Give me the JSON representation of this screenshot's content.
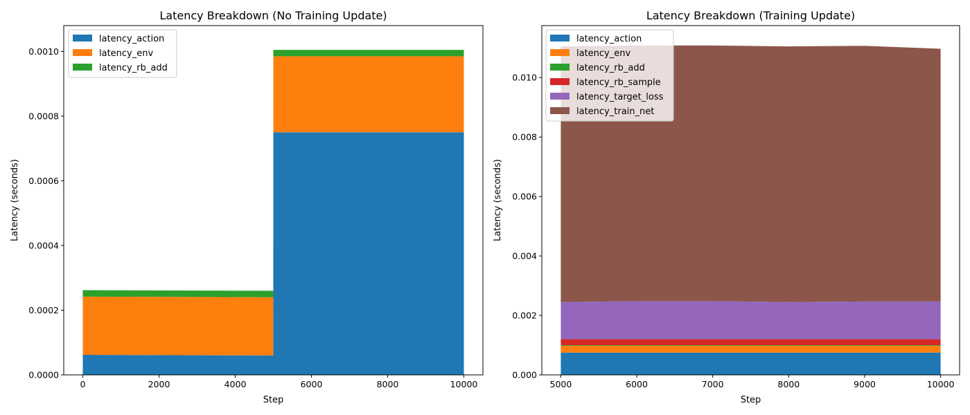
{
  "chart_data": [
    {
      "type": "area",
      "stacked": true,
      "title": "Latency Breakdown (No Training Update)",
      "xlabel": "Step",
      "ylabel": "Latency (seconds)",
      "xlim": [
        -500,
        10500
      ],
      "ylim": [
        0,
        0.00108
      ],
      "xticks": [
        0,
        2000,
        4000,
        6000,
        8000,
        10000
      ],
      "xtick_labels": [
        "0",
        "2000",
        "4000",
        "6000",
        "8000",
        "10000"
      ],
      "yticks": [
        0,
        0.0002,
        0.0004,
        0.0006,
        0.0008,
        0.001
      ],
      "ytick_labels": [
        "0.0000",
        "0.0002",
        "0.0004",
        "0.0006",
        "0.0008",
        "0.0010"
      ],
      "grid": false,
      "legend_position": "upper-left",
      "x": [
        0,
        4999,
        5000,
        10000
      ],
      "series": [
        {
          "name": "latency_action",
          "color": "#1f77b4",
          "values": [
            6.2e-05,
            6e-05,
            0.00075,
            0.00075
          ]
        },
        {
          "name": "latency_env",
          "color": "#ff7f0e",
          "values": [
            0.00018,
            0.00018,
            0.000235,
            0.000235
          ]
        },
        {
          "name": "latency_rb_add",
          "color": "#2ca02c",
          "values": [
            2e-05,
            2e-05,
            2e-05,
            2e-05
          ]
        }
      ]
    },
    {
      "type": "area",
      "stacked": true,
      "title": "Latency Breakdown (Training Update)",
      "xlabel": "Step",
      "ylabel": "Latency (seconds)",
      "xlim": [
        4750,
        10250
      ],
      "ylim": [
        0,
        0.01175
      ],
      "xticks": [
        5000,
        6000,
        7000,
        8000,
        9000,
        10000
      ],
      "xtick_labels": [
        "5000",
        "6000",
        "7000",
        "8000",
        "9000",
        "10000"
      ],
      "yticks": [
        0,
        0.002,
        0.004,
        0.006,
        0.008,
        0.01
      ],
      "ytick_labels": [
        "0.000",
        "0.002",
        "0.004",
        "0.006",
        "0.008",
        "0.010"
      ],
      "grid": false,
      "legend_position": "upper-left",
      "x": [
        5000,
        6000,
        7000,
        8000,
        9000,
        10000
      ],
      "series": [
        {
          "name": "latency_action",
          "color": "#1f77b4",
          "values": [
            0.00075,
            0.00075,
            0.00075,
            0.00075,
            0.00075,
            0.00075
          ]
        },
        {
          "name": "latency_env",
          "color": "#ff7f0e",
          "values": [
            0.00023,
            0.00023,
            0.00023,
            0.00023,
            0.00023,
            0.00023
          ]
        },
        {
          "name": "latency_rb_add",
          "color": "#2ca02c",
          "values": [
            2e-05,
            2e-05,
            2e-05,
            2e-05,
            2e-05,
            2e-05
          ]
        },
        {
          "name": "latency_rb_sample",
          "color": "#d62728",
          "values": [
            0.0002,
            0.0002,
            0.0002,
            0.0002,
            0.0002,
            0.0002
          ]
        },
        {
          "name": "latency_target_loss",
          "color": "#9467bd",
          "values": [
            0.00125,
            0.00128,
            0.00128,
            0.00125,
            0.00127,
            0.00127
          ]
        },
        {
          "name": "latency_train_net",
          "color": "#8c564b",
          "values": [
            0.0086,
            0.0086,
            0.0086,
            0.0086,
            0.0086,
            0.0085
          ]
        }
      ]
    }
  ]
}
